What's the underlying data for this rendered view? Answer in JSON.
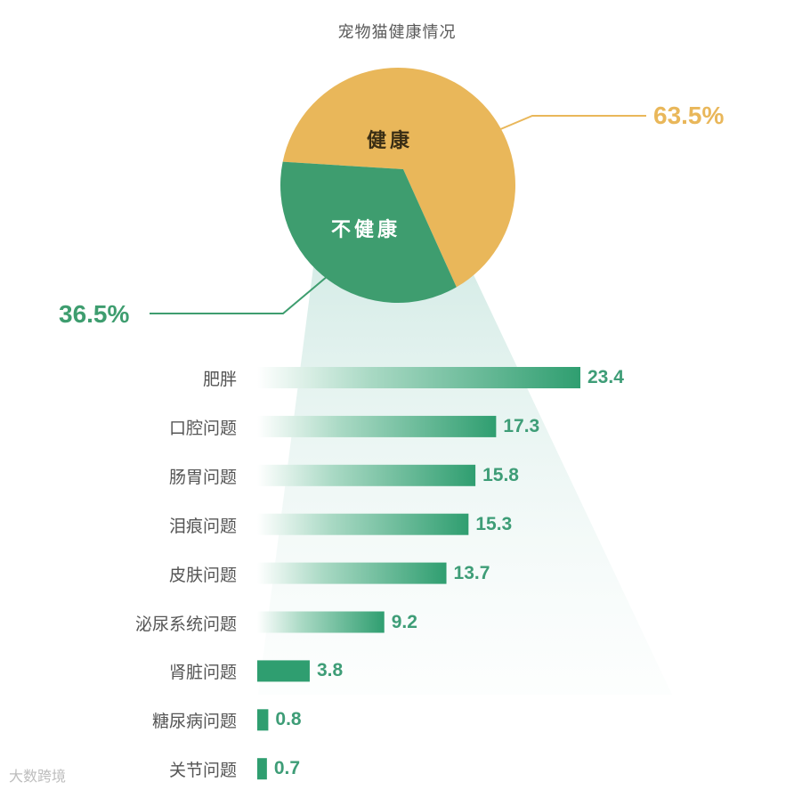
{
  "chart_data": [
    {
      "type": "pie",
      "title": "宠物猫健康情况",
      "slices": [
        {
          "label": "健康",
          "value": 63.5,
          "value_label": "63.5%",
          "color": "#e9b75a"
        },
        {
          "label": "不健康",
          "value": 36.5,
          "value_label": "36.5%",
          "color": "#3e9d6f"
        }
      ]
    },
    {
      "type": "bar",
      "orientation": "horizontal",
      "categories": [
        "肥胖",
        "口腔问题",
        "肠胃问题",
        "泪痕问题",
        "皮肤问题",
        "泌尿系统问题",
        "肾脏问题",
        "糖尿病问题",
        "关节问题"
      ],
      "values": [
        23.4,
        17.3,
        15.8,
        15.3,
        13.7,
        9.2,
        3.8,
        0.8,
        0.7
      ],
      "value_labels": [
        "23.4",
        "17.3",
        "15.8",
        "15.3",
        "13.7",
        "9.2",
        "3.8",
        "0.8",
        "0.7"
      ],
      "bar_color": "#2f9e70"
    }
  ],
  "colors": {
    "healthy": "#e9b75a",
    "unhealthy": "#3e9d6f",
    "value_text": "#3e9d77"
  },
  "watermark": "大数跨境"
}
